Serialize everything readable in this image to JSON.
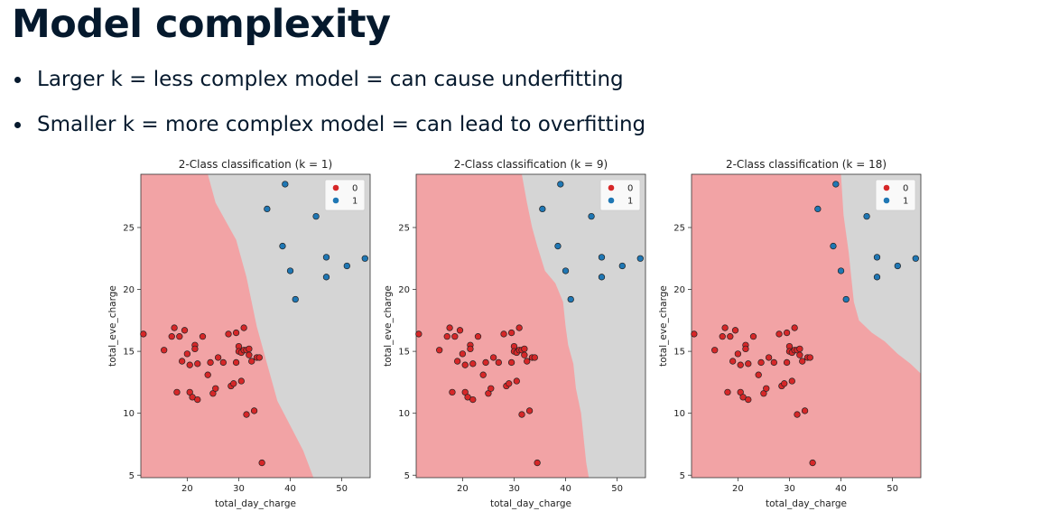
{
  "slide": {
    "title": "Model complexity",
    "bullets": [
      "Larger k = less complex model = can cause underfitting",
      "Smaller k = more complex model = can lead to overfitting"
    ]
  },
  "colors": {
    "class0_region": "#f2a3a5",
    "class1_region": "#d5d5d5",
    "class0_point": "#d62728",
    "class1_point": "#1f77b4"
  },
  "chart_data": [
    {
      "type": "scatter",
      "title": "2-Class classification (k = 1)",
      "xlabel": "total_day_charge",
      "ylabel": "total_eve_charge",
      "xlim": [
        11,
        55.5
      ],
      "ylim": [
        4.8,
        29.3
      ],
      "xticks": [
        20,
        30,
        40,
        50
      ],
      "yticks": [
        5,
        10,
        15,
        20,
        25
      ],
      "legend": {
        "position": "top-right",
        "entries": [
          "0",
          "1"
        ]
      },
      "boundary": [
        [
          24,
          29.3
        ],
        [
          25.5,
          27
        ],
        [
          27.5,
          25.5
        ],
        [
          29.5,
          24
        ],
        [
          31.5,
          21
        ],
        [
          33.5,
          17
        ],
        [
          35.5,
          14
        ],
        [
          37.5,
          11
        ],
        [
          40,
          9
        ],
        [
          42.5,
          7
        ],
        [
          44.5,
          4.8
        ]
      ],
      "series": [
        {
          "name": "0",
          "points": [
            [
              11.5,
              16.4
            ],
            [
              15.5,
              15.1
            ],
            [
              17,
              16.2
            ],
            [
              17.5,
              16.9
            ],
            [
              18,
              11.7
            ],
            [
              18.5,
              16.2
            ],
            [
              19,
              14.2
            ],
            [
              19.5,
              16.7
            ],
            [
              20,
              14.8
            ],
            [
              20.5,
              11.7
            ],
            [
              20.5,
              13.9
            ],
            [
              21,
              11.3
            ],
            [
              21.5,
              15.5
            ],
            [
              21.5,
              15.2
            ],
            [
              22,
              11.1
            ],
            [
              22,
              14
            ],
            [
              23,
              16.2
            ],
            [
              24,
              13.1
            ],
            [
              24.5,
              14.1
            ],
            [
              25,
              11.6
            ],
            [
              25.5,
              12
            ],
            [
              26,
              14.5
            ],
            [
              27,
              14.1
            ],
            [
              28,
              16.4
            ],
            [
              28.5,
              12.2
            ],
            [
              29,
              12.4
            ],
            [
              29.5,
              16.5
            ],
            [
              29.5,
              14.1
            ],
            [
              30,
              15.4
            ],
            [
              30,
              15
            ],
            [
              30.5,
              12.6
            ],
            [
              30.5,
              14.9
            ],
            [
              31,
              16.9
            ],
            [
              31,
              15.1
            ],
            [
              31.5,
              9.9
            ],
            [
              31.5,
              15.1
            ],
            [
              32,
              15.2
            ],
            [
              32,
              14.7
            ],
            [
              32.5,
              14.2
            ],
            [
              33,
              10.2
            ],
            [
              33.5,
              14.5
            ],
            [
              34,
              14.5
            ],
            [
              34.5,
              6
            ]
          ]
        },
        {
          "name": "1",
          "points": [
            [
              35.5,
              26.5
            ],
            [
              38.5,
              23.5
            ],
            [
              39,
              28.5
            ],
            [
              40,
              21.5
            ],
            [
              41,
              19.2
            ],
            [
              45,
              25.9
            ],
            [
              47,
              22.6
            ],
            [
              47,
              21
            ],
            [
              51,
              21.9
            ],
            [
              54.5,
              22.5
            ]
          ]
        }
      ]
    },
    {
      "type": "scatter",
      "title": "2-Class classification (k = 9)",
      "xlabel": "total_day_charge",
      "ylabel": "total_eve_charge",
      "xlim": [
        11,
        55.5
      ],
      "ylim": [
        4.8,
        29.3
      ],
      "xticks": [
        20,
        30,
        40,
        50
      ],
      "yticks": [
        5,
        10,
        15,
        20,
        25
      ],
      "legend": {
        "position": "top-right",
        "entries": [
          "0",
          "1"
        ]
      },
      "boundary": [
        [
          31.5,
          29.3
        ],
        [
          32.5,
          27
        ],
        [
          33.5,
          25
        ],
        [
          34.5,
          23.5
        ],
        [
          36,
          21.5
        ],
        [
          38,
          20.5
        ],
        [
          39.5,
          19
        ],
        [
          40,
          17
        ],
        [
          40.5,
          15.5
        ],
        [
          41.5,
          14
        ],
        [
          42,
          12
        ],
        [
          43,
          10
        ],
        [
          43.5,
          8
        ],
        [
          44,
          6
        ],
        [
          44.5,
          4.8
        ]
      ],
      "series": [
        {
          "name": "0",
          "points": [
            [
              11.5,
              16.4
            ],
            [
              15.5,
              15.1
            ],
            [
              17,
              16.2
            ],
            [
              17.5,
              16.9
            ],
            [
              18,
              11.7
            ],
            [
              18.5,
              16.2
            ],
            [
              19,
              14.2
            ],
            [
              19.5,
              16.7
            ],
            [
              20,
              14.8
            ],
            [
              20.5,
              11.7
            ],
            [
              20.5,
              13.9
            ],
            [
              21,
              11.3
            ],
            [
              21.5,
              15.5
            ],
            [
              21.5,
              15.2
            ],
            [
              22,
              11.1
            ],
            [
              22,
              14
            ],
            [
              23,
              16.2
            ],
            [
              24,
              13.1
            ],
            [
              24.5,
              14.1
            ],
            [
              25,
              11.6
            ],
            [
              25.5,
              12
            ],
            [
              26,
              14.5
            ],
            [
              27,
              14.1
            ],
            [
              28,
              16.4
            ],
            [
              28.5,
              12.2
            ],
            [
              29,
              12.4
            ],
            [
              29.5,
              16.5
            ],
            [
              29.5,
              14.1
            ],
            [
              30,
              15.4
            ],
            [
              30,
              15
            ],
            [
              30.5,
              12.6
            ],
            [
              30.5,
              14.9
            ],
            [
              31,
              16.9
            ],
            [
              31,
              15.1
            ],
            [
              31.5,
              9.9
            ],
            [
              31.5,
              15.1
            ],
            [
              32,
              15.2
            ],
            [
              32,
              14.7
            ],
            [
              32.5,
              14.2
            ],
            [
              33,
              10.2
            ],
            [
              33.5,
              14.5
            ],
            [
              34,
              14.5
            ],
            [
              34.5,
              6
            ]
          ]
        },
        {
          "name": "1",
          "points": [
            [
              35.5,
              26.5
            ],
            [
              38.5,
              23.5
            ],
            [
              39,
              28.5
            ],
            [
              40,
              21.5
            ],
            [
              41,
              19.2
            ],
            [
              45,
              25.9
            ],
            [
              47,
              22.6
            ],
            [
              47,
              21
            ],
            [
              51,
              21.9
            ],
            [
              54.5,
              22.5
            ]
          ]
        }
      ]
    },
    {
      "type": "scatter",
      "title": "2-Class classification (k = 18)",
      "xlabel": "total_day_charge",
      "ylabel": "total_eve_charge",
      "xlim": [
        11,
        55.5
      ],
      "ylim": [
        4.8,
        29.3
      ],
      "xticks": [
        20,
        30,
        40,
        50
      ],
      "yticks": [
        5,
        10,
        15,
        20,
        25
      ],
      "legend": {
        "position": "top-right",
        "entries": [
          "0",
          "1"
        ]
      },
      "boundary": [
        [
          40,
          29.3
        ],
        [
          40.5,
          26
        ],
        [
          41.5,
          23
        ],
        [
          42,
          21
        ],
        [
          42.5,
          19
        ],
        [
          43.5,
          17.5
        ],
        [
          46,
          16.5
        ],
        [
          48.5,
          15.8
        ],
        [
          51,
          14.8
        ],
        [
          53.5,
          14
        ],
        [
          55.5,
          13.2
        ]
      ],
      "series": [
        {
          "name": "0",
          "points": [
            [
              11.5,
              16.4
            ],
            [
              15.5,
              15.1
            ],
            [
              17,
              16.2
            ],
            [
              17.5,
              16.9
            ],
            [
              18,
              11.7
            ],
            [
              18.5,
              16.2
            ],
            [
              19,
              14.2
            ],
            [
              19.5,
              16.7
            ],
            [
              20,
              14.8
            ],
            [
              20.5,
              11.7
            ],
            [
              20.5,
              13.9
            ],
            [
              21,
              11.3
            ],
            [
              21.5,
              15.5
            ],
            [
              21.5,
              15.2
            ],
            [
              22,
              11.1
            ],
            [
              22,
              14
            ],
            [
              23,
              16.2
            ],
            [
              24,
              13.1
            ],
            [
              24.5,
              14.1
            ],
            [
              25,
              11.6
            ],
            [
              25.5,
              12
            ],
            [
              26,
              14.5
            ],
            [
              27,
              14.1
            ],
            [
              28,
              16.4
            ],
            [
              28.5,
              12.2
            ],
            [
              29,
              12.4
            ],
            [
              29.5,
              16.5
            ],
            [
              29.5,
              14.1
            ],
            [
              30,
              15.4
            ],
            [
              30,
              15
            ],
            [
              30.5,
              12.6
            ],
            [
              30.5,
              14.9
            ],
            [
              31,
              16.9
            ],
            [
              31,
              15.1
            ],
            [
              31.5,
              9.9
            ],
            [
              31.5,
              15.1
            ],
            [
              32,
              15.2
            ],
            [
              32,
              14.7
            ],
            [
              32.5,
              14.2
            ],
            [
              33,
              10.2
            ],
            [
              33.5,
              14.5
            ],
            [
              34,
              14.5
            ],
            [
              34.5,
              6
            ]
          ]
        },
        {
          "name": "1",
          "points": [
            [
              35.5,
              26.5
            ],
            [
              38.5,
              23.5
            ],
            [
              39,
              28.5
            ],
            [
              40,
              21.5
            ],
            [
              41,
              19.2
            ],
            [
              45,
              25.9
            ],
            [
              47,
              22.6
            ],
            [
              47,
              21
            ],
            [
              51,
              21.9
            ],
            [
              54.5,
              22.5
            ]
          ]
        }
      ]
    }
  ]
}
